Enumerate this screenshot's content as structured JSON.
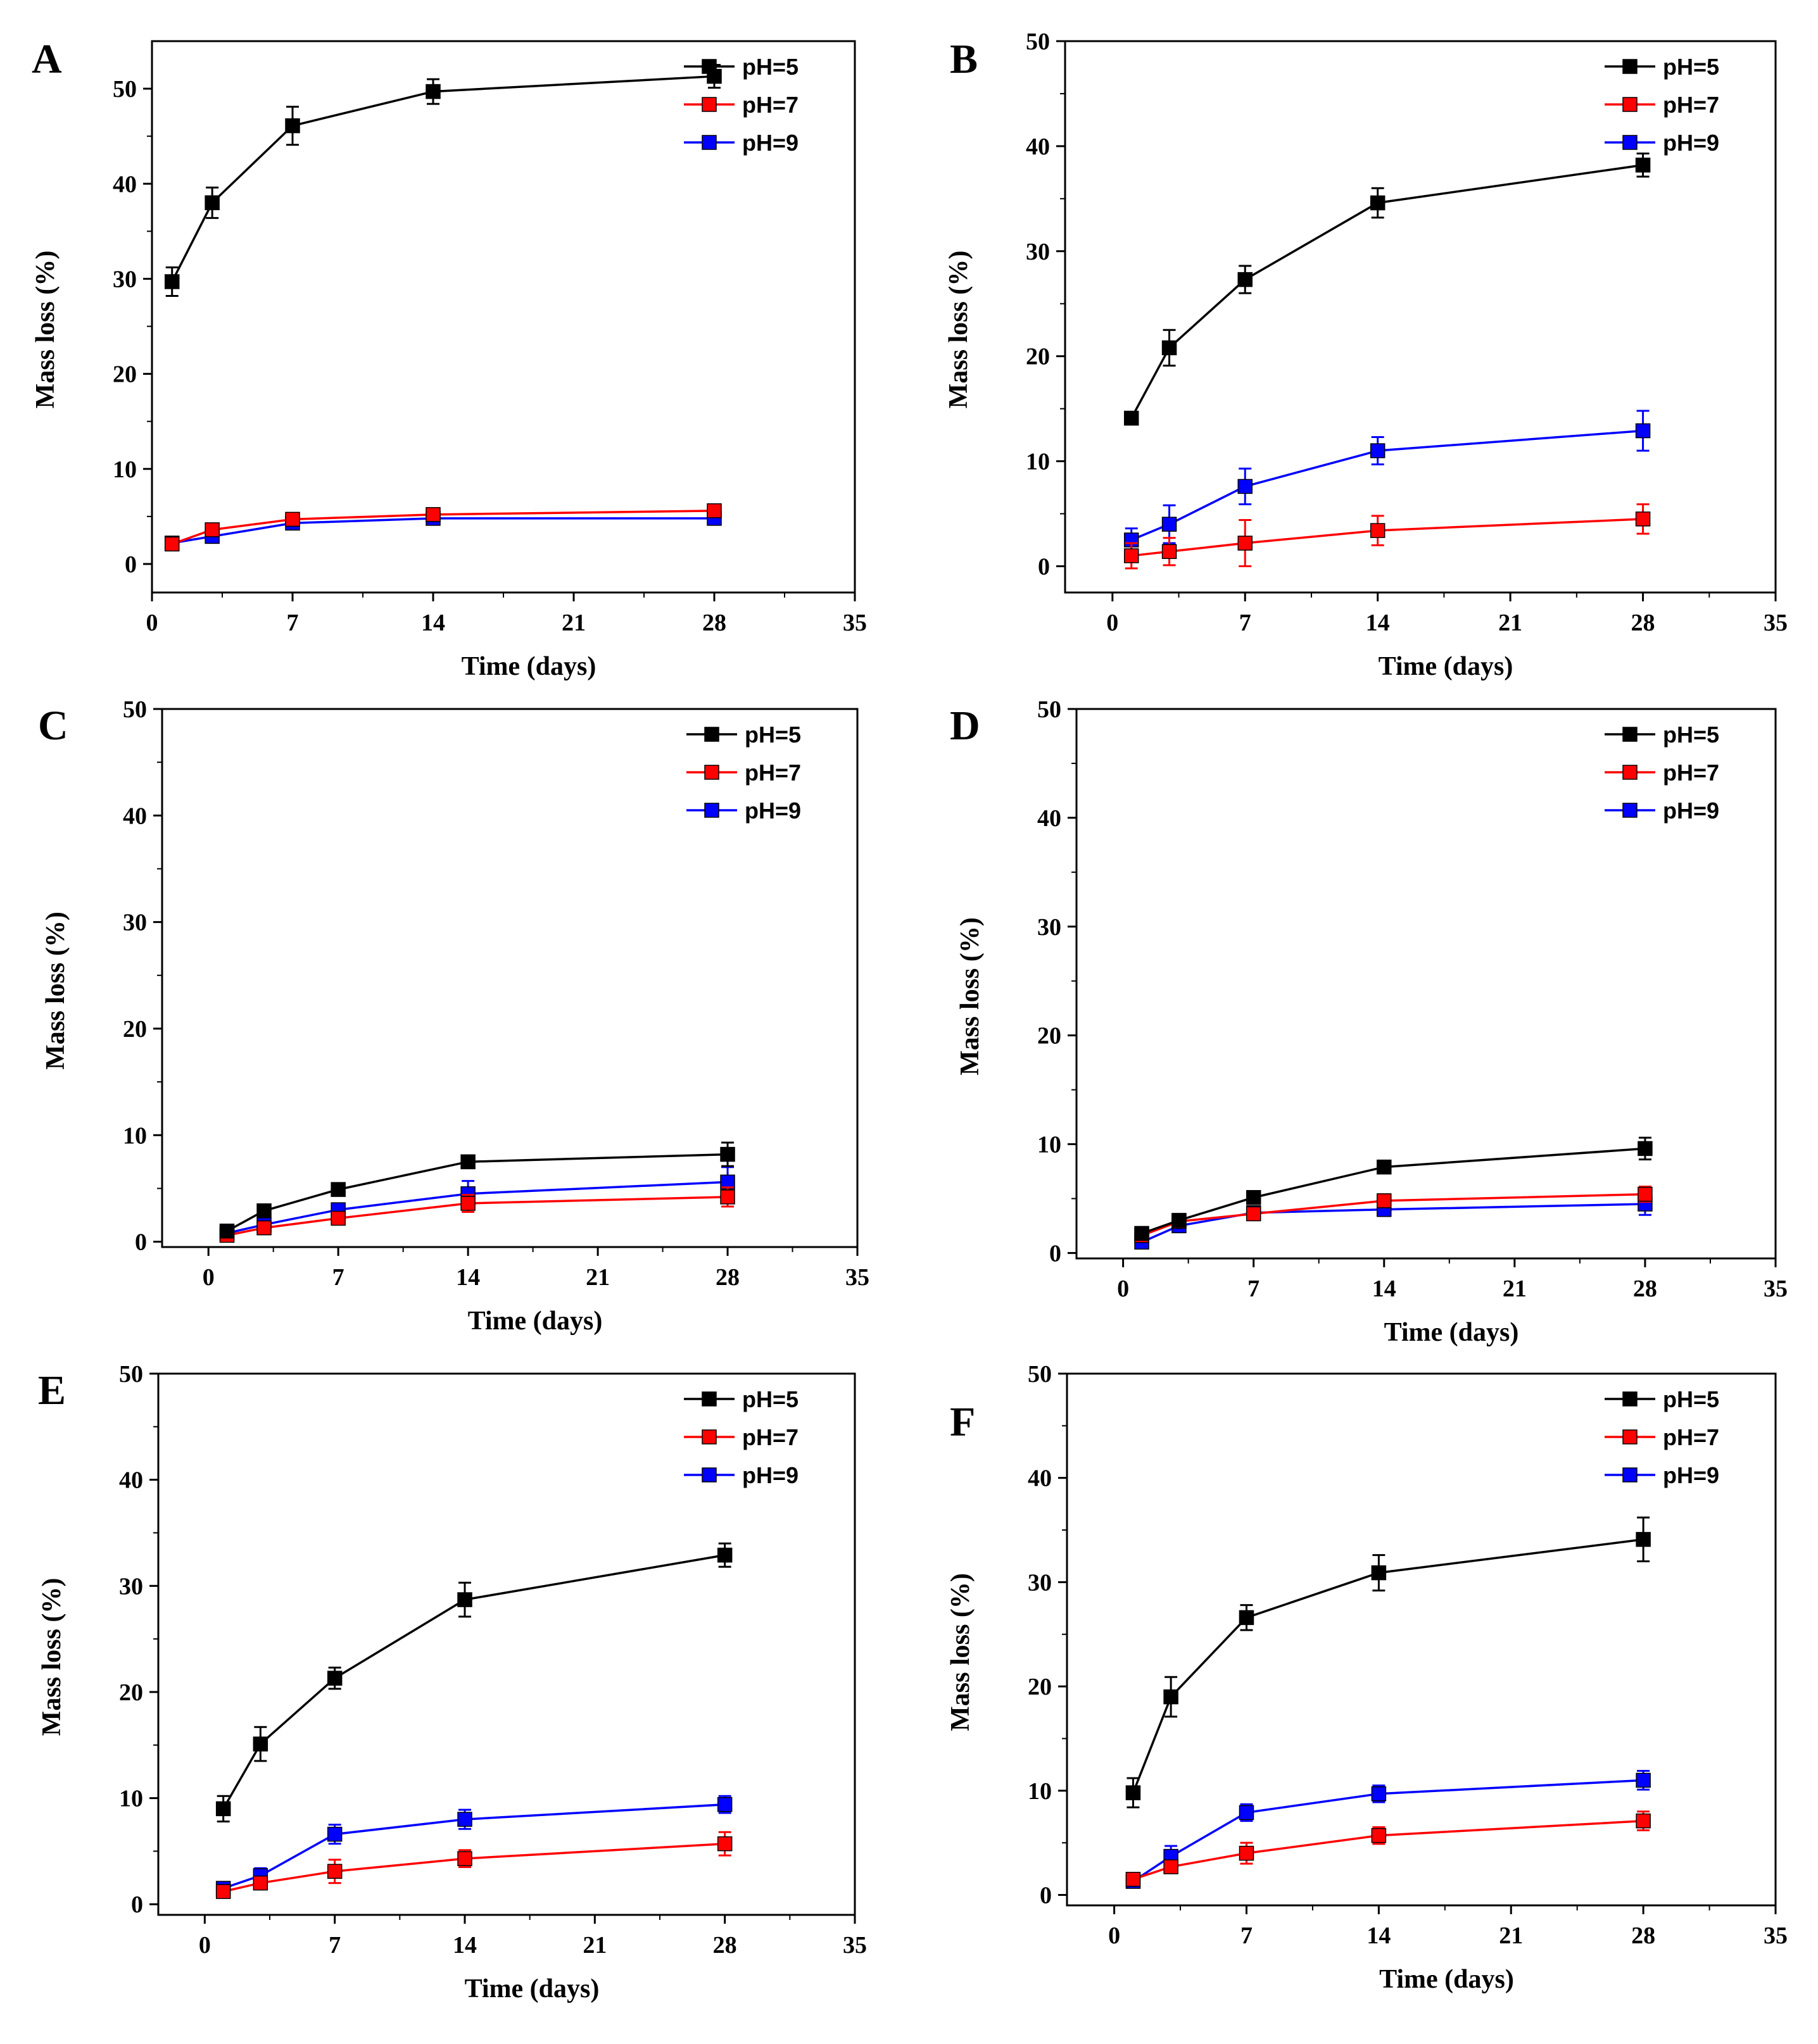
{
  "figure": {
    "panel_count": 6
  },
  "chart_data": [
    {
      "type": "line",
      "panel": "A",
      "x": [
        1,
        3,
        7,
        14,
        28
      ],
      "xlabel": "Time (days)",
      "ylabel": "Mass loss (%)",
      "xlim": [
        0,
        35
      ],
      "ylim": [
        -3,
        55
      ],
      "xticks": [
        0,
        7,
        14,
        21,
        28,
        35
      ],
      "yticks": [
        0,
        10,
        20,
        30,
        40,
        50
      ],
      "legend_position": "top-right",
      "series": [
        {
          "name": "pH=5",
          "color": "#000000",
          "values": [
            29.7,
            38.0,
            46.1,
            49.7,
            51.3
          ],
          "errors": [
            1.5,
            1.6,
            2.0,
            1.3,
            1.2
          ]
        },
        {
          "name": "pH=7",
          "color": "#ff0000",
          "values": [
            2.1,
            3.6,
            4.7,
            5.2,
            5.6
          ],
          "errors": [
            0.3,
            0.4,
            0.4,
            0.4,
            0.4
          ]
        },
        {
          "name": "pH=9",
          "color": "#0000ff",
          "values": [
            2.2,
            2.9,
            4.3,
            4.8,
            4.8
          ],
          "errors": [
            0.3,
            0.3,
            0.3,
            0.3,
            0.3
          ]
        }
      ]
    },
    {
      "type": "line",
      "panel": "B",
      "x": [
        1,
        3,
        7,
        14,
        28
      ],
      "xlabel": "Time (days)",
      "ylabel": "Mass loss (%)",
      "xlim": [
        -2.5,
        35
      ],
      "ylim": [
        -2.5,
        50
      ],
      "xticks": [
        0,
        7,
        14,
        21,
        28,
        35
      ],
      "yticks": [
        0,
        10,
        20,
        30,
        40,
        50
      ],
      "legend_position": "top-right",
      "series": [
        {
          "name": "pH=5",
          "color": "#000000",
          "values": [
            14.1,
            20.8,
            27.3,
            34.6,
            38.2
          ],
          "errors": [
            0.4,
            1.7,
            1.3,
            1.4,
            1.1
          ]
        },
        {
          "name": "pH=7",
          "color": "#ff0000",
          "values": [
            1.0,
            1.4,
            2.2,
            3.4,
            4.5
          ],
          "errors": [
            1.2,
            1.3,
            2.2,
            1.4,
            1.4
          ]
        },
        {
          "name": "pH=9",
          "color": "#0000ff",
          "values": [
            2.5,
            4.0,
            7.6,
            11.0,
            12.9
          ],
          "errors": [
            1.1,
            1.8,
            1.7,
            1.3,
            1.9
          ]
        }
      ]
    },
    {
      "type": "line",
      "panel": "C",
      "x": [
        1,
        3,
        7,
        14,
        28
      ],
      "xlabel": "Time (days)",
      "ylabel": "Mass loss (%)",
      "xlim": [
        -2.5,
        35
      ],
      "ylim": [
        -0.5,
        50
      ],
      "xticks": [
        0,
        7,
        14,
        21,
        28,
        35
      ],
      "yticks": [
        0,
        10,
        20,
        30,
        40,
        50
      ],
      "legend_position": "top-right",
      "series": [
        {
          "name": "pH=5",
          "color": "#000000",
          "values": [
            1.0,
            2.9,
            4.9,
            7.5,
            8.2
          ],
          "errors": [
            0.3,
            0.4,
            0.4,
            0.5,
            1.1
          ]
        },
        {
          "name": "pH=7",
          "color": "#ff0000",
          "values": [
            0.6,
            1.3,
            2.2,
            3.6,
            4.2
          ],
          "errors": [
            0.3,
            0.4,
            0.5,
            0.8,
            0.9
          ]
        },
        {
          "name": "pH=9",
          "color": "#0000ff",
          "values": [
            0.8,
            1.6,
            3.0,
            4.5,
            5.6
          ],
          "errors": [
            0.3,
            0.4,
            0.5,
            1.2,
            1.4
          ]
        }
      ]
    },
    {
      "type": "line",
      "panel": "D",
      "x": [
        1,
        3,
        7,
        14,
        28
      ],
      "xlabel": "Time (days)",
      "ylabel": "Mass loss (%)",
      "xlim": [
        -2.5,
        35
      ],
      "ylim": [
        -0.5,
        50
      ],
      "xticks": [
        0,
        7,
        14,
        21,
        28,
        35
      ],
      "yticks": [
        0,
        10,
        20,
        30,
        40,
        50
      ],
      "legend_position": "top-right",
      "series": [
        {
          "name": "pH=5",
          "color": "#000000",
          "values": [
            1.8,
            3.0,
            5.1,
            7.9,
            9.6
          ],
          "errors": [
            0.3,
            0.4,
            0.4,
            0.4,
            1.0
          ]
        },
        {
          "name": "pH=7",
          "color": "#ff0000",
          "values": [
            1.6,
            2.9,
            3.6,
            4.8,
            5.4
          ],
          "errors": [
            0.3,
            0.4,
            0.5,
            0.6,
            0.7
          ]
        },
        {
          "name": "pH=9",
          "color": "#0000ff",
          "values": [
            1.0,
            2.5,
            3.7,
            4.0,
            4.5
          ],
          "errors": [
            0.4,
            0.5,
            0.5,
            0.6,
            1.0
          ]
        }
      ]
    },
    {
      "type": "line",
      "panel": "E",
      "x": [
        1,
        3,
        7,
        14,
        28
      ],
      "xlabel": "Time (days)",
      "ylabel": "Mass loss (%)",
      "xlim": [
        -2.5,
        35
      ],
      "ylim": [
        -1,
        50
      ],
      "xticks": [
        0,
        7,
        14,
        21,
        28,
        35
      ],
      "yticks": [
        0,
        10,
        20,
        30,
        40,
        50
      ],
      "legend_position": "top-right",
      "series": [
        {
          "name": "pH=5",
          "color": "#000000",
          "values": [
            9.0,
            15.1,
            21.3,
            28.7,
            32.9
          ],
          "errors": [
            1.2,
            1.6,
            1.0,
            1.6,
            1.1
          ]
        },
        {
          "name": "pH=7",
          "color": "#ff0000",
          "values": [
            1.2,
            2.0,
            3.1,
            4.3,
            5.7
          ],
          "errors": [
            0.3,
            0.6,
            1.1,
            0.8,
            1.1
          ]
        },
        {
          "name": "pH=9",
          "color": "#0000ff",
          "values": [
            1.5,
            2.7,
            6.6,
            8.0,
            9.4
          ],
          "errors": [
            0.4,
            0.7,
            0.9,
            0.9,
            0.8
          ]
        }
      ]
    },
    {
      "type": "line",
      "panel": "F",
      "x": [
        1,
        3,
        7,
        14,
        28
      ],
      "xlabel": "Time (days)",
      "ylabel": "Mass loss (%)",
      "xlim": [
        -2.5,
        35
      ],
      "ylim": [
        -1,
        50
      ],
      "xticks": [
        0,
        7,
        14,
        21,
        28,
        35
      ],
      "yticks": [
        0,
        10,
        20,
        30,
        40,
        50
      ],
      "legend_position": "top-right",
      "series": [
        {
          "name": "pH=5",
          "color": "#000000",
          "values": [
            9.8,
            19.0,
            26.6,
            30.9,
            34.1
          ],
          "errors": [
            1.4,
            1.9,
            1.2,
            1.7,
            2.1
          ]
        },
        {
          "name": "pH=7",
          "color": "#ff0000",
          "values": [
            1.5,
            2.7,
            4.0,
            5.7,
            7.1
          ],
          "errors": [
            0.4,
            0.6,
            1.0,
            0.8,
            0.9
          ]
        },
        {
          "name": "pH=9",
          "color": "#0000ff",
          "values": [
            1.3,
            3.7,
            7.9,
            9.7,
            11.0
          ],
          "errors": [
            0.4,
            1.0,
            0.8,
            0.8,
            0.9
          ]
        }
      ]
    }
  ]
}
